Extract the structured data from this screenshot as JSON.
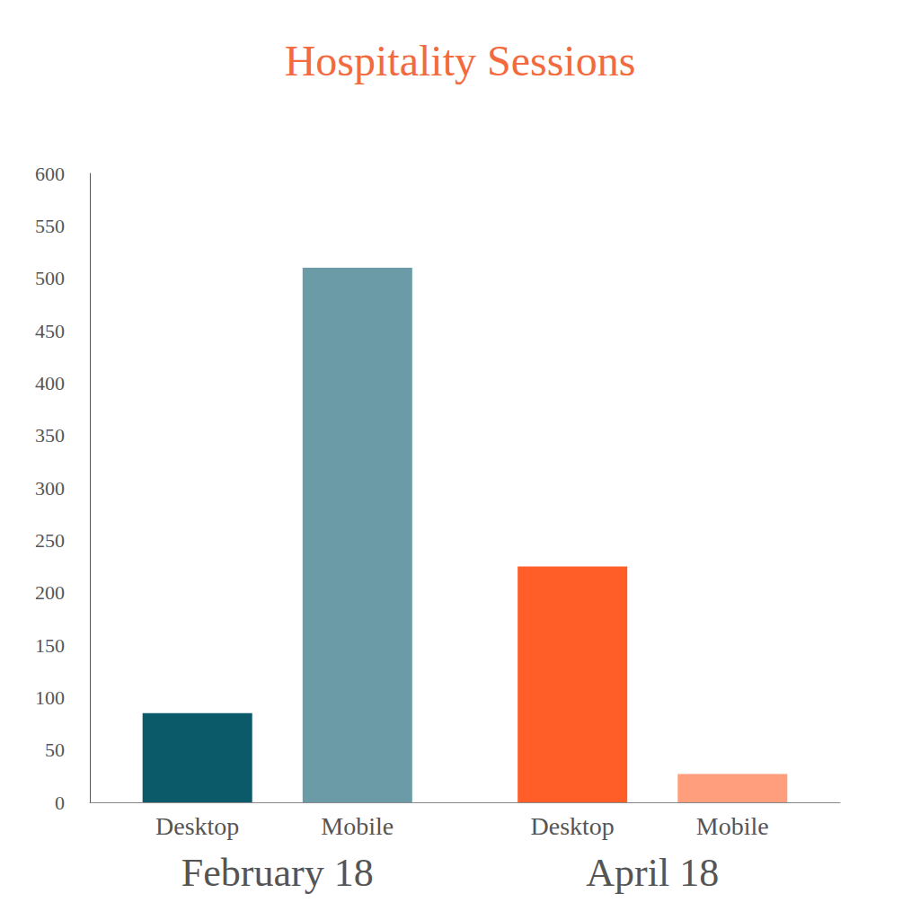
{
  "chart_data": {
    "type": "bar",
    "title": "Hospitality Sessions",
    "categories": [
      "February 18",
      "April 18"
    ],
    "series": [
      {
        "name": "Desktop",
        "colors": [
          "#0b5a69",
          "#ff5e28"
        ],
        "values": [
          85,
          225
        ]
      },
      {
        "name": "Mobile",
        "colors": [
          "#6a9ba7",
          "#ff9e7d"
        ],
        "values": [
          510,
          27
        ]
      }
    ],
    "ylim": [
      0,
      600
    ],
    "yticks": [
      0,
      50,
      100,
      150,
      200,
      250,
      300,
      350,
      400,
      450,
      500,
      550,
      600
    ],
    "grid": false
  }
}
